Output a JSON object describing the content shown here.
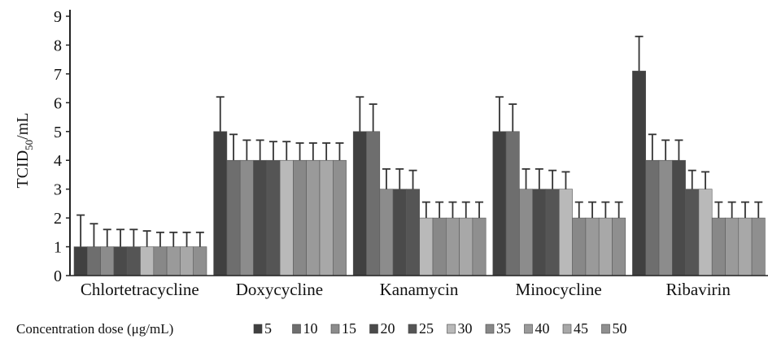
{
  "chart_data": {
    "type": "bar",
    "title": "",
    "ylabel": "TCID50/mL",
    "ylabel_main": "TCID",
    "ylabel_sub": "50",
    "ylabel_tail": "/mL",
    "xlabel": "",
    "ylim": [
      0,
      9
    ],
    "yticks": [
      "0",
      "1",
      "2",
      "3",
      "4",
      "5",
      "6",
      "7",
      "8",
      "9"
    ],
    "grid": false,
    "error_bars": true,
    "legend_position": "bottom",
    "legend_title": "Concentration dose (μg/mL)",
    "categories": [
      "Chlortetracycline",
      "Doxycycline",
      "Kanamycin",
      "Minocycline",
      "Ribavirin"
    ],
    "series": [
      {
        "name": "5",
        "color": "#404040",
        "values": [
          1,
          5,
          5,
          5,
          7.1
        ],
        "errors": [
          1.1,
          1.2,
          1.2,
          1.2,
          1.2
        ]
      },
      {
        "name": "10",
        "color": "#6e6e6e",
        "values": [
          1,
          4,
          5,
          5,
          4
        ],
        "errors": [
          0.8,
          0.9,
          0.95,
          0.95,
          0.9
        ]
      },
      {
        "name": "15",
        "color": "#8c8c8c",
        "values": [
          1,
          4,
          3,
          3,
          4
        ],
        "errors": [
          0.6,
          0.7,
          0.7,
          0.7,
          0.7
        ]
      },
      {
        "name": "20",
        "color": "#4a4a4a",
        "values": [
          1,
          4,
          3,
          3,
          4
        ],
        "errors": [
          0.6,
          0.7,
          0.7,
          0.7,
          0.7
        ]
      },
      {
        "name": "25",
        "color": "#555555",
        "values": [
          1,
          4,
          3,
          3,
          3
        ],
        "errors": [
          0.6,
          0.65,
          0.65,
          0.65,
          0.65
        ]
      },
      {
        "name": "30",
        "color": "#b9b9b9",
        "values": [
          1,
          4,
          2,
          3,
          3
        ],
        "errors": [
          0.55,
          0.65,
          0.55,
          0.6,
          0.6
        ]
      },
      {
        "name": "35",
        "color": "#888888",
        "values": [
          1,
          4,
          2,
          2,
          2
        ],
        "errors": [
          0.5,
          0.6,
          0.55,
          0.55,
          0.55
        ]
      },
      {
        "name": "40",
        "color": "#9a9a9a",
        "values": [
          1,
          4,
          2,
          2,
          2
        ],
        "errors": [
          0.5,
          0.6,
          0.55,
          0.55,
          0.55
        ]
      },
      {
        "name": "45",
        "color": "#a8a8a8",
        "values": [
          1,
          4,
          2,
          2,
          2
        ],
        "errors": [
          0.5,
          0.6,
          0.55,
          0.55,
          0.55
        ]
      },
      {
        "name": "50",
        "color": "#8f8f8f",
        "values": [
          1,
          4,
          2,
          2,
          2
        ],
        "errors": [
          0.5,
          0.6,
          0.55,
          0.55,
          0.55
        ]
      }
    ]
  }
}
